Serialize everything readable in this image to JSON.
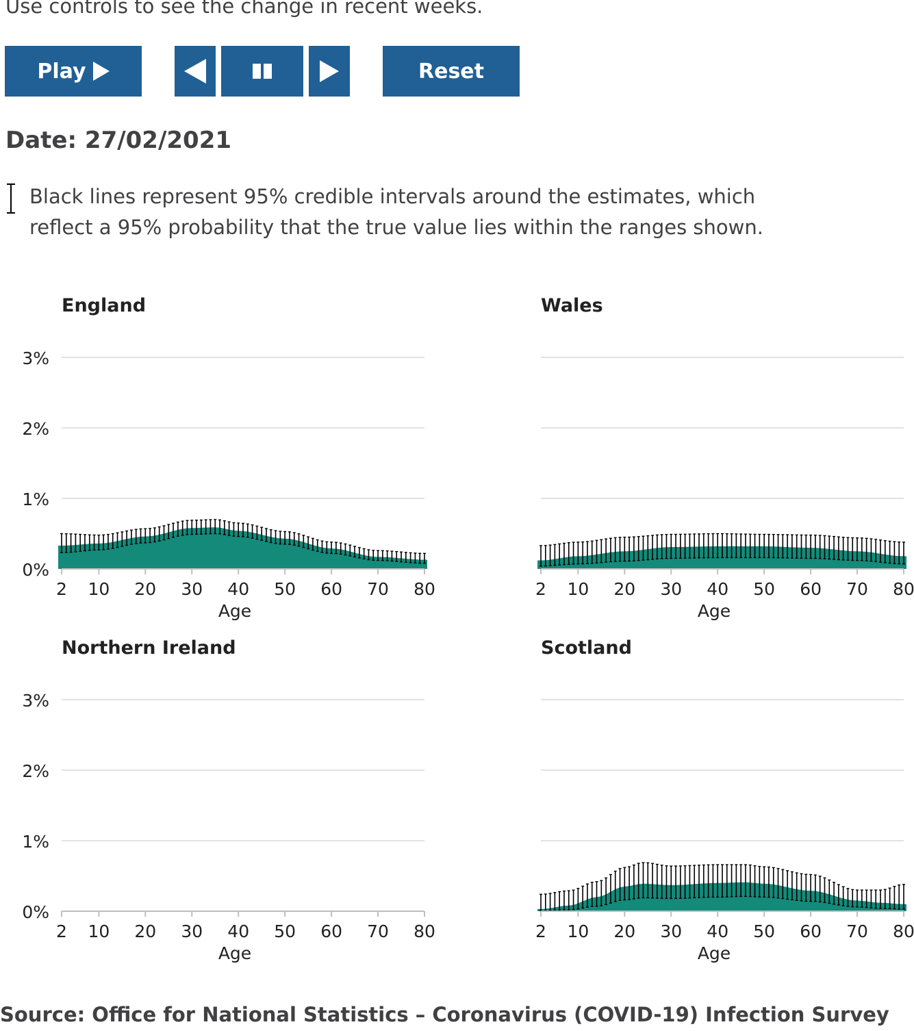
{
  "intro_text": "Use controls to see the change in recent weeks.",
  "controls": {
    "play_label": "Play",
    "reset_label": "Reset",
    "button_color": "#206095"
  },
  "date": {
    "label": "Date:",
    "value": "27/02/2021"
  },
  "ci_legend": "Black lines represent 95% credible intervals around the estimates, which reflect a 95% probability that the true value lies within the ranges shown.",
  "colors": {
    "area": "#138a7a",
    "interval": "#000000",
    "grid": "#d9d9d9",
    "axis": "#bebebe"
  },
  "chart_data": [
    {
      "type": "area",
      "title": "England",
      "xlabel": "Age",
      "ylabel": "",
      "xlim": [
        2,
        80
      ],
      "ylim": [
        0,
        3
      ],
      "x_ticks": [
        2,
        10,
        20,
        30,
        40,
        50,
        60,
        70,
        80
      ],
      "y_ticks": [
        "0%",
        "1%",
        "2%",
        "3%"
      ],
      "y_tick_values": [
        0,
        1,
        2,
        3
      ],
      "grid": true,
      "points": [
        [
          2,
          0.33,
          0.23,
          0.5
        ],
        [
          10,
          0.36,
          0.27,
          0.48
        ],
        [
          20,
          0.46,
          0.37,
          0.57
        ],
        [
          30,
          0.58,
          0.49,
          0.69
        ],
        [
          35,
          0.59,
          0.5,
          0.7
        ],
        [
          40,
          0.54,
          0.46,
          0.65
        ],
        [
          50,
          0.43,
          0.35,
          0.53
        ],
        [
          60,
          0.29,
          0.22,
          0.38
        ],
        [
          70,
          0.17,
          0.12,
          0.26
        ],
        [
          80,
          0.13,
          0.08,
          0.22
        ]
      ]
    },
    {
      "type": "area",
      "title": "Wales",
      "xlabel": "Age",
      "ylabel": "",
      "xlim": [
        2,
        80
      ],
      "ylim": [
        0,
        3
      ],
      "x_ticks": [
        2,
        10,
        20,
        30,
        40,
        50,
        60,
        70,
        80
      ],
      "y_ticks": [
        "0%",
        "1%",
        "2%",
        "3%"
      ],
      "y_tick_values": [
        0,
        1,
        2,
        3
      ],
      "grid": true,
      "points": [
        [
          2,
          0.12,
          0.04,
          0.33
        ],
        [
          10,
          0.18,
          0.07,
          0.38
        ],
        [
          20,
          0.25,
          0.11,
          0.45
        ],
        [
          30,
          0.31,
          0.15,
          0.49
        ],
        [
          40,
          0.32,
          0.16,
          0.5
        ],
        [
          50,
          0.32,
          0.16,
          0.49
        ],
        [
          60,
          0.3,
          0.15,
          0.48
        ],
        [
          70,
          0.25,
          0.12,
          0.44
        ],
        [
          80,
          0.18,
          0.07,
          0.38
        ]
      ]
    },
    {
      "type": "area",
      "title": "Northern Ireland",
      "xlabel": "Age",
      "ylabel": "",
      "xlim": [
        2,
        80
      ],
      "ylim": [
        0,
        3
      ],
      "x_ticks": [
        2,
        10,
        20,
        30,
        40,
        50,
        60,
        70,
        80
      ],
      "y_ticks": [
        "0%",
        "1%",
        "2%",
        "3%"
      ],
      "y_tick_values": [
        0,
        1,
        2,
        3
      ],
      "grid": true,
      "points": []
    },
    {
      "type": "area",
      "title": "Scotland",
      "xlabel": "Age",
      "ylabel": "",
      "xlim": [
        2,
        80
      ],
      "ylim": [
        0,
        3
      ],
      "x_ticks": [
        2,
        10,
        20,
        30,
        40,
        50,
        60,
        70,
        80
      ],
      "y_ticks": [
        "0%",
        "1%",
        "2%",
        "3%"
      ],
      "y_tick_values": [
        0,
        1,
        2,
        3
      ],
      "grid": true,
      "points": [
        [
          2,
          0.03,
          0.01,
          0.24
        ],
        [
          8,
          0.08,
          0.02,
          0.29
        ],
        [
          14,
          0.2,
          0.07,
          0.42
        ],
        [
          20,
          0.35,
          0.16,
          0.62
        ],
        [
          24,
          0.39,
          0.19,
          0.69
        ],
        [
          30,
          0.37,
          0.18,
          0.64
        ],
        [
          40,
          0.4,
          0.2,
          0.66
        ],
        [
          46,
          0.41,
          0.21,
          0.66
        ],
        [
          50,
          0.39,
          0.2,
          0.63
        ],
        [
          60,
          0.29,
          0.14,
          0.52
        ],
        [
          70,
          0.15,
          0.06,
          0.3
        ],
        [
          75,
          0.12,
          0.04,
          0.3
        ],
        [
          80,
          0.1,
          0.03,
          0.38
        ]
      ]
    }
  ],
  "source": "Source: Office for National Statistics – Coronavirus (COVID-19) Infection Survey"
}
